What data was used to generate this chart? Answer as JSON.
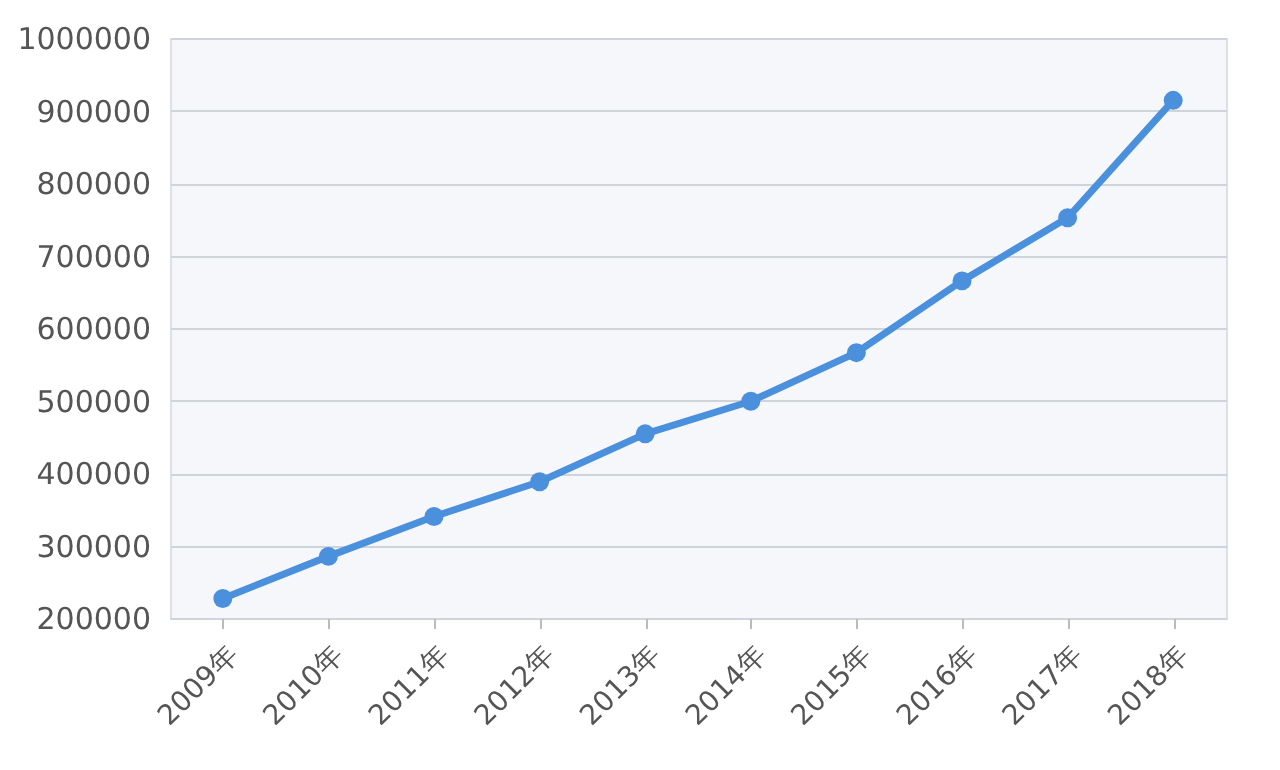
{
  "chart_data": {
    "type": "line",
    "categories": [
      "2009年",
      "2010年",
      "2011年",
      "2012年",
      "2013年",
      "2014年",
      "2015年",
      "2016年",
      "2017年",
      "2018年"
    ],
    "series": [
      {
        "color": "#4a90dc",
        "values": [
          227000,
          285000,
          340000,
          388000,
          454000,
          499000,
          566000,
          665000,
          752000,
          914000
        ]
      }
    ],
    "ylim": [
      200000,
      1000000
    ],
    "yticks": [
      200000,
      300000,
      400000,
      500000,
      600000,
      700000,
      800000,
      900000,
      1000000
    ],
    "grid": "y",
    "marker": "circle",
    "line_style": "solid",
    "legend": false
  }
}
